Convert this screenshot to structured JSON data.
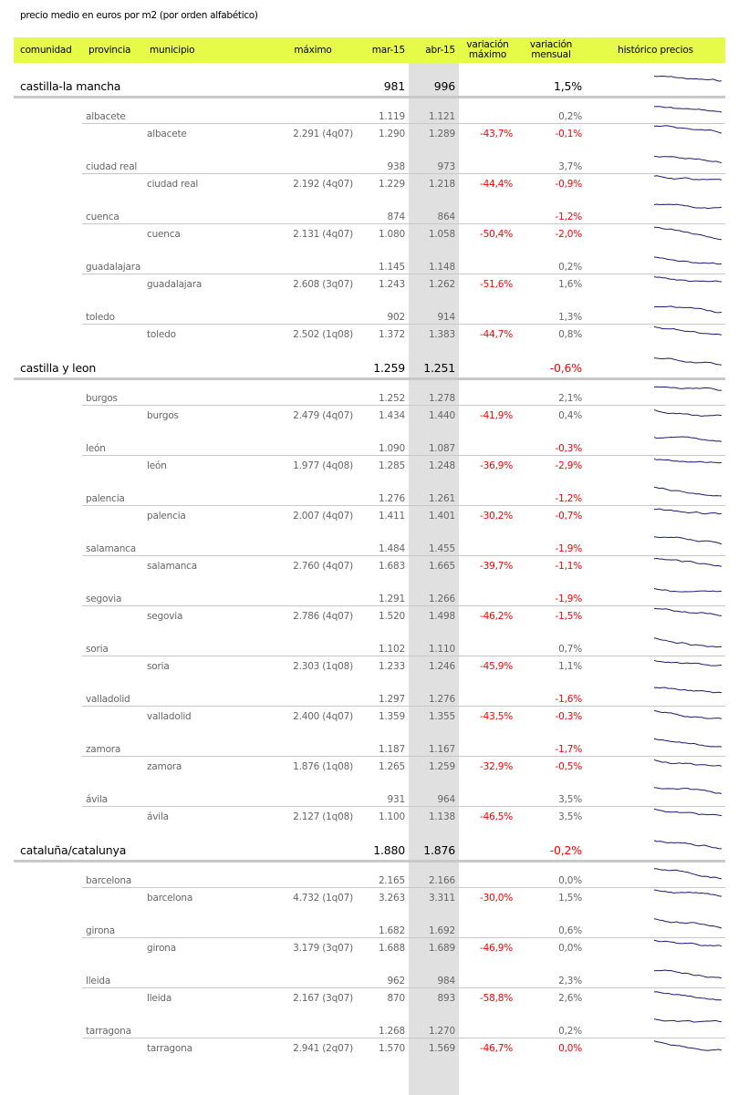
{
  "title": "precio medio en euros por m2 (por orden alfabético)",
  "headers": {
    "comunidad": "comunidad",
    "provincia": "provincia",
    "municipio": "municipio",
    "maximo": "máximo",
    "mar": "mar-15",
    "abr": "abr-15",
    "var_max": "variación máximo",
    "var_mensual": "variación mensual",
    "historico": "histórico precios"
  },
  "colors": {
    "header_bg": "#e6fa48",
    "highlight_column": "#e0e0e0",
    "negative": "#ff0000",
    "sparkline": "#1a1a6e"
  },
  "regions": [
    {
      "name": "castilla-la mancha",
      "mar": "981",
      "abr": "996",
      "var_mensual": "1,5%",
      "provinces": [
        {
          "name": "albacete",
          "mar": "1.119",
          "abr": "1.121",
          "var_mensual": "0,2%",
          "mun": {
            "name": "albacete",
            "maximo": "2.291 (4q07)",
            "mar": "1.290",
            "abr": "1.289",
            "var_max": "-43,7%",
            "var_mensual": "-0,1%"
          }
        },
        {
          "name": "ciudad real",
          "mar": "938",
          "abr": "973",
          "var_mensual": "3,7%",
          "mun": {
            "name": "ciudad real",
            "maximo": "2.192 (4q07)",
            "mar": "1.229",
            "abr": "1.218",
            "var_max": "-44,4%",
            "var_mensual": "-0,9%"
          }
        },
        {
          "name": "cuenca",
          "mar": "874",
          "abr": "864",
          "var_mensual": "-1,2%",
          "mun": {
            "name": "cuenca",
            "maximo": "2.131 (4q07)",
            "mar": "1.080",
            "abr": "1.058",
            "var_max": "-50,4%",
            "var_mensual": "-2,0%"
          }
        },
        {
          "name": "guadalajara",
          "mar": "1.145",
          "abr": "1.148",
          "var_mensual": "0,2%",
          "mun": {
            "name": "guadalajara",
            "maximo": "2.608 (3q07)",
            "mar": "1.243",
            "abr": "1.262",
            "var_max": "-51,6%",
            "var_mensual": "1,6%"
          }
        },
        {
          "name": "toledo",
          "mar": "902",
          "abr": "914",
          "var_mensual": "1,3%",
          "mun": {
            "name": "toledo",
            "maximo": "2.502 (1q08)",
            "mar": "1.372",
            "abr": "1.383",
            "var_max": "-44,7%",
            "var_mensual": "0,8%"
          }
        }
      ]
    },
    {
      "name": "castilla y leon",
      "mar": "1.259",
      "abr": "1.251",
      "var_mensual": "-0,6%",
      "provinces": [
        {
          "name": "burgos",
          "mar": "1.252",
          "abr": "1.278",
          "var_mensual": "2,1%",
          "mun": {
            "name": "burgos",
            "maximo": "2.479 (4q07)",
            "mar": "1.434",
            "abr": "1.440",
            "var_max": "-41,9%",
            "var_mensual": "0,4%"
          }
        },
        {
          "name": "león",
          "mar": "1.090",
          "abr": "1.087",
          "var_mensual": "-0,3%",
          "mun": {
            "name": "león",
            "maximo": "1.977 (4q08)",
            "mar": "1.285",
            "abr": "1.248",
            "var_max": "-36,9%",
            "var_mensual": "-2,9%"
          }
        },
        {
          "name": "palencia",
          "mar": "1.276",
          "abr": "1.261",
          "var_mensual": "-1,2%",
          "mun": {
            "name": "palencia",
            "maximo": "2.007 (4q07)",
            "mar": "1.411",
            "abr": "1.401",
            "var_max": "-30,2%",
            "var_mensual": "-0,7%"
          }
        },
        {
          "name": "salamanca",
          "mar": "1.484",
          "abr": "1.455",
          "var_mensual": "-1,9%",
          "mun": {
            "name": "salamanca",
            "maximo": "2.760 (4q07)",
            "mar": "1.683",
            "abr": "1.665",
            "var_max": "-39,7%",
            "var_mensual": "-1,1%"
          }
        },
        {
          "name": "segovia",
          "mar": "1.291",
          "abr": "1.266",
          "var_mensual": "-1,9%",
          "mun": {
            "name": "segovia",
            "maximo": "2.786 (4q07)",
            "mar": "1.520",
            "abr": "1.498",
            "var_max": "-46,2%",
            "var_mensual": "-1,5%"
          }
        },
        {
          "name": "soria",
          "mar": "1.102",
          "abr": "1.110",
          "var_mensual": "0,7%",
          "mun": {
            "name": "soria",
            "maximo": "2.303 (1q08)",
            "mar": "1.233",
            "abr": "1.246",
            "var_max": "-45,9%",
            "var_mensual": "1,1%"
          }
        },
        {
          "name": "valladolid",
          "mar": "1.297",
          "abr": "1.276",
          "var_mensual": "-1,6%",
          "mun": {
            "name": "valladolid",
            "maximo": "2.400 (4q07)",
            "mar": "1.359",
            "abr": "1.355",
            "var_max": "-43,5%",
            "var_mensual": "-0,3%"
          }
        },
        {
          "name": "zamora",
          "mar": "1.187",
          "abr": "1.167",
          "var_mensual": "-1,7%",
          "mun": {
            "name": "zamora",
            "maximo": "1.876 (1q08)",
            "mar": "1.265",
            "abr": "1.259",
            "var_max": "-32,9%",
            "var_mensual": "-0,5%"
          }
        },
        {
          "name": "ávila",
          "mar": "931",
          "abr": "964",
          "var_mensual": "3,5%",
          "mun": {
            "name": "ávila",
            "maximo": "2.127 (1q08)",
            "mar": "1.100",
            "abr": "1.138",
            "var_max": "-46,5%",
            "var_mensual": "3,5%"
          }
        }
      ]
    },
    {
      "name": "cataluña/catalunya",
      "mar": "1.880",
      "abr": "1.876",
      "var_mensual": "-0,2%",
      "provinces": [
        {
          "name": "barcelona",
          "mar": "2.165",
          "abr": "2.166",
          "var_mensual": "0,0%",
          "mun": {
            "name": "barcelona",
            "maximo": "4.732 (1q07)",
            "mar": "3.263",
            "abr": "3.311",
            "var_max": "-30,0%",
            "var_mensual": "1,5%"
          }
        },
        {
          "name": "girona",
          "mar": "1.682",
          "abr": "1.692",
          "var_mensual": "0,6%",
          "mun": {
            "name": "girona",
            "maximo": "3.179 (3q07)",
            "mar": "1.688",
            "abr": "1.689",
            "var_max": "-46,9%",
            "var_mensual": "0,0%"
          }
        },
        {
          "name": "lleida",
          "mar": "962",
          "abr": "984",
          "var_mensual": "2,3%",
          "mun": {
            "name": "lleida",
            "maximo": "2.167 (3q07)",
            "mar": "870",
            "abr": "893",
            "var_max": "-58,8%",
            "var_mensual": "2,6%"
          }
        },
        {
          "name": "tarragona",
          "mar": "1.268",
          "abr": "1.270",
          "var_mensual": "0,2%",
          "mun": {
            "name": "tarragona",
            "maximo": "2.941 (2q07)",
            "mar": "1.570",
            "abr": "1.569",
            "var_max": "-46,7%",
            "var_mensual": "0,0%",
            "var_mensual_red": true
          }
        }
      ]
    }
  ]
}
